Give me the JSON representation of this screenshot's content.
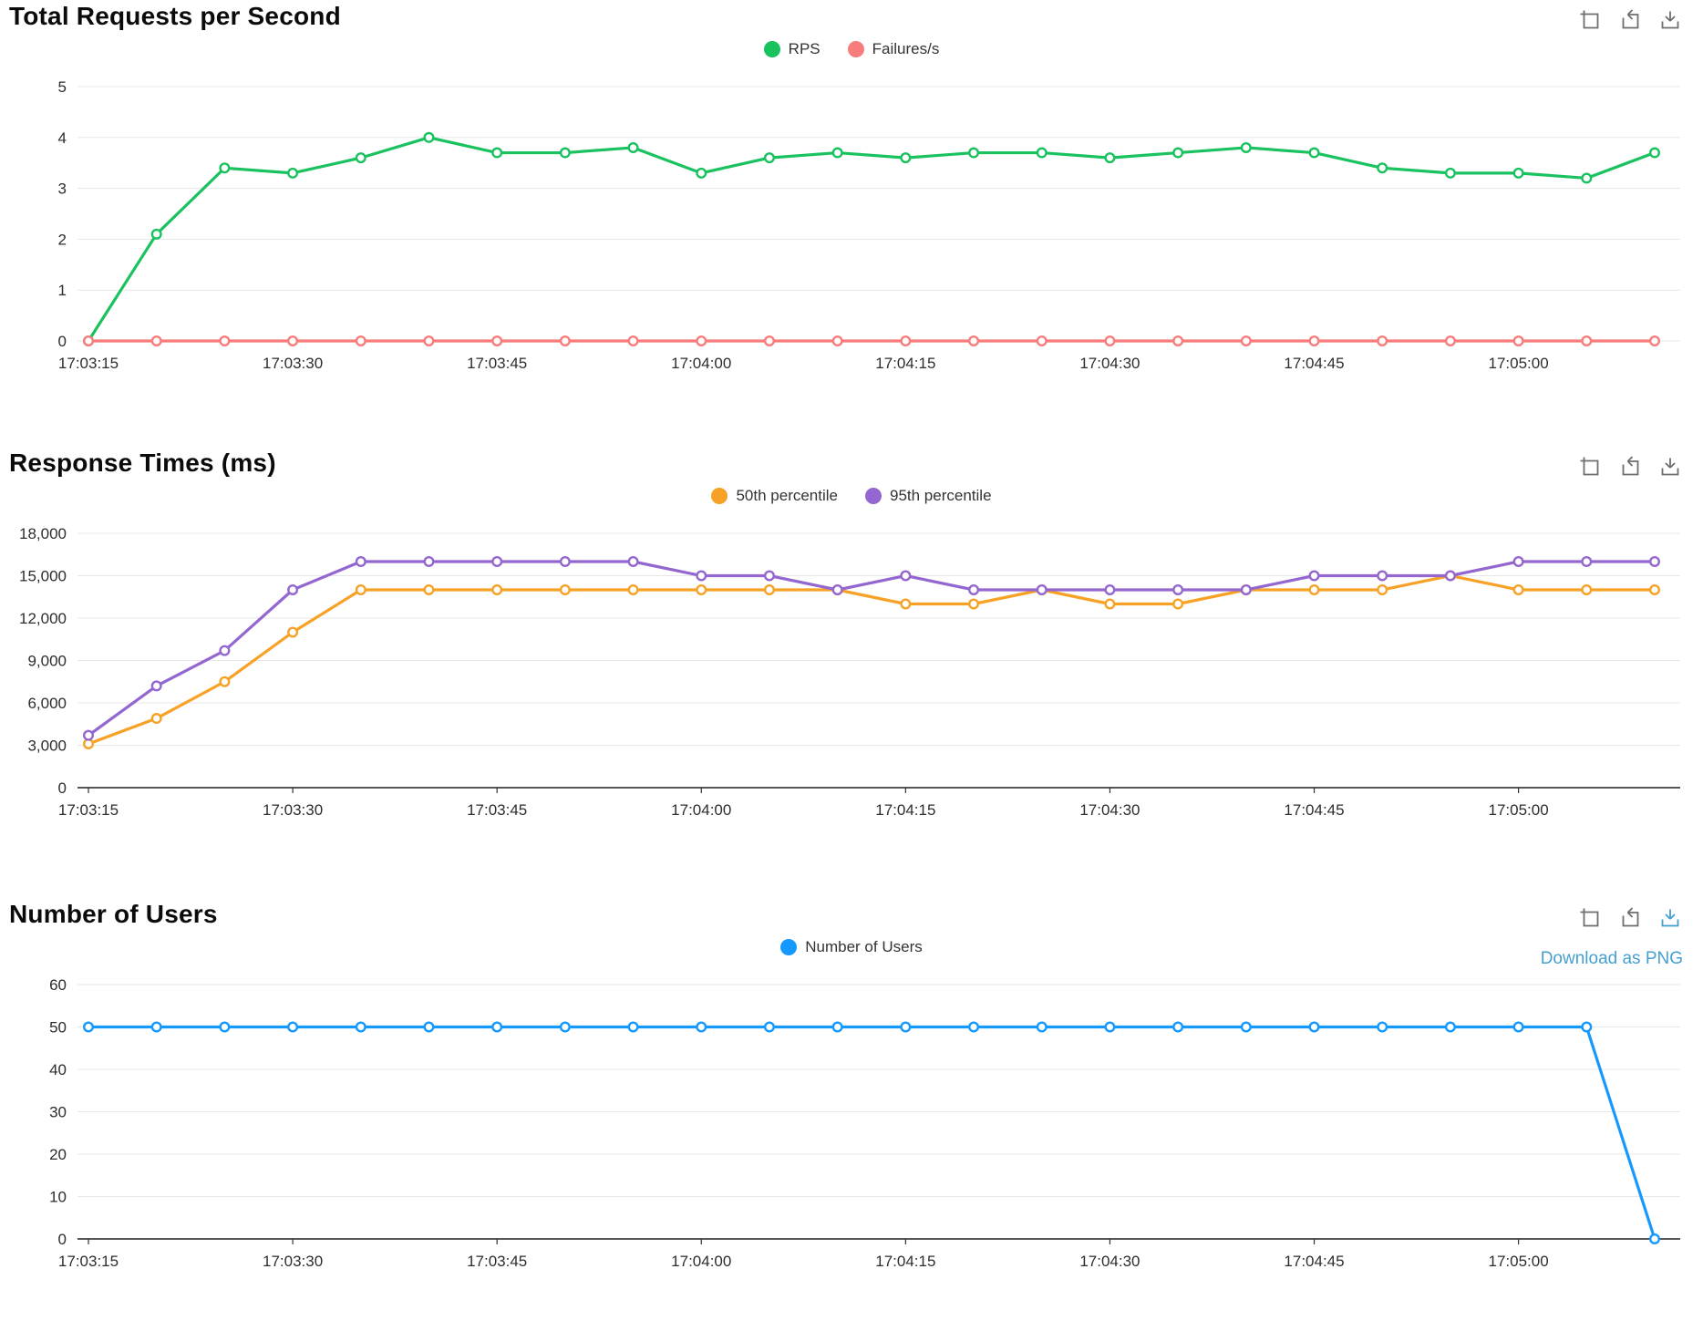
{
  "toolbox": {
    "icons": [
      "box-zoom-icon",
      "restore-icon",
      "download-icon"
    ],
    "icon_color": "#6e6e6e",
    "active_icon_color": "#459fd1"
  },
  "chart_data": [
    {
      "type": "line",
      "title": "Total Requests per Second",
      "x": [
        "17:03:15",
        "17:03:20",
        "17:03:25",
        "17:03:30",
        "17:03:35",
        "17:03:40",
        "17:03:45",
        "17:03:50",
        "17:03:55",
        "17:04:00",
        "17:04:05",
        "17:04:10",
        "17:04:15",
        "17:04:20",
        "17:04:25",
        "17:04:30",
        "17:04:35",
        "17:04:40",
        "17:04:45",
        "17:04:50",
        "17:04:55",
        "17:05:00",
        "17:05:05",
        "17:05:10"
      ],
      "x_label_every": 3,
      "x_axis_line": "light",
      "grid": true,
      "legend_position": "top-center",
      "ylim": [
        0,
        5
      ],
      "y_ticks": [
        0,
        1,
        2,
        3,
        4,
        5
      ],
      "y_tick_labels": [
        "0",
        "1",
        "2",
        "3",
        "4",
        "5"
      ],
      "series": [
        {
          "name": "RPS",
          "color": "#19c25f",
          "marker": "empty-circle",
          "values": [
            0,
            2.1,
            3.4,
            3.3,
            3.6,
            4.0,
            3.7,
            3.7,
            3.8,
            3.3,
            3.6,
            3.7,
            3.6,
            3.7,
            3.7,
            3.6,
            3.7,
            3.8,
            3.7,
            3.4,
            3.3,
            3.3,
            3.2,
            3.7
          ]
        },
        {
          "name": "Failures/s",
          "color": "#f77c7c",
          "marker": "empty-circle",
          "values": [
            0,
            0,
            0,
            0,
            0,
            0,
            0,
            0,
            0,
            0,
            0,
            0,
            0,
            0,
            0,
            0,
            0,
            0,
            0,
            0,
            0,
            0,
            0,
            0
          ]
        }
      ]
    },
    {
      "type": "line",
      "title": "Response Times (ms)",
      "x": [
        "17:03:15",
        "17:03:20",
        "17:03:25",
        "17:03:30",
        "17:03:35",
        "17:03:40",
        "17:03:45",
        "17:03:50",
        "17:03:55",
        "17:04:00",
        "17:04:05",
        "17:04:10",
        "17:04:15",
        "17:04:20",
        "17:04:25",
        "17:04:30",
        "17:04:35",
        "17:04:40",
        "17:04:45",
        "17:04:50",
        "17:04:55",
        "17:05:00",
        "17:05:05",
        "17:05:10"
      ],
      "x_label_every": 3,
      "x_axis_line": "dark",
      "grid": true,
      "legend_position": "top-center",
      "ylim": [
        0,
        18000
      ],
      "y_ticks": [
        0,
        3000,
        6000,
        9000,
        12000,
        15000,
        18000
      ],
      "y_tick_labels": [
        "0",
        "3,000",
        "6,000",
        "9,000",
        "12,000",
        "15,000",
        "18,000"
      ],
      "series": [
        {
          "name": "50th percentile",
          "color": "#f7a226",
          "marker": "empty-circle",
          "values": [
            3100,
            4900,
            7500,
            11000,
            14000,
            14000,
            14000,
            14000,
            14000,
            14000,
            14000,
            14000,
            13000,
            13000,
            14000,
            13000,
            13000,
            14000,
            14000,
            14000,
            15000,
            14000,
            14000,
            14000
          ]
        },
        {
          "name": "95th percentile",
          "color": "#9467d0",
          "marker": "empty-circle",
          "values": [
            3700,
            7200,
            9700,
            14000,
            16000,
            16000,
            16000,
            16000,
            16000,
            15000,
            15000,
            14000,
            15000,
            14000,
            14000,
            14000,
            14000,
            14000,
            15000,
            15000,
            15000,
            16000,
            16000,
            16000
          ]
        }
      ]
    },
    {
      "type": "line",
      "title": "Number of Users",
      "x": [
        "17:03:15",
        "17:03:20",
        "17:03:25",
        "17:03:30",
        "17:03:35",
        "17:03:40",
        "17:03:45",
        "17:03:50",
        "17:03:55",
        "17:04:00",
        "17:04:05",
        "17:04:10",
        "17:04:15",
        "17:04:20",
        "17:04:25",
        "17:04:30",
        "17:04:35",
        "17:04:40",
        "17:04:45",
        "17:04:50",
        "17:04:55",
        "17:05:00",
        "17:05:05",
        "17:05:10"
      ],
      "x_label_every": 3,
      "x_axis_line": "dark",
      "grid": true,
      "legend_position": "top-center",
      "ylim": [
        0,
        60
      ],
      "y_ticks": [
        0,
        10,
        20,
        30,
        40,
        50,
        60
      ],
      "y_tick_labels": [
        "0",
        "10",
        "20",
        "30",
        "40",
        "50",
        "60"
      ],
      "download_active": true,
      "download_tooltip": "Download as PNG",
      "series": [
        {
          "name": "Number of Users",
          "color": "#1699ff",
          "marker": "empty-circle",
          "values": [
            50,
            50,
            50,
            50,
            50,
            50,
            50,
            50,
            50,
            50,
            50,
            50,
            50,
            50,
            50,
            50,
            50,
            50,
            50,
            50,
            50,
            50,
            50,
            0
          ]
        }
      ]
    }
  ]
}
